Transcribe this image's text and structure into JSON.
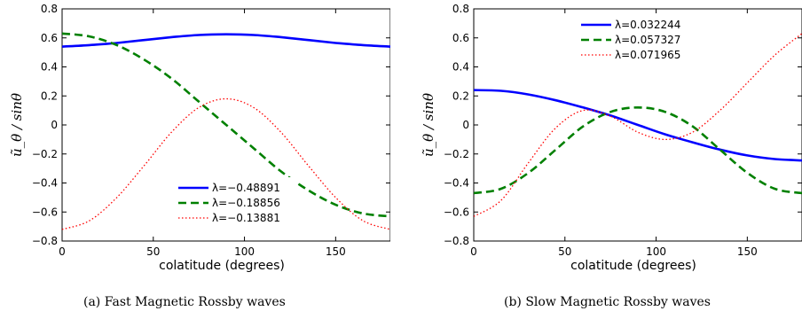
{
  "chart_data": [
    {
      "type": "line",
      "caption": "(a)  Fast Magnetic Rossby waves",
      "xlabel": "colatitude (degrees)",
      "ylabel": "ũ_θ / sinθ",
      "xlim": [
        0,
        180
      ],
      "ylim": [
        -0.8,
        0.8
      ],
      "xticks": [
        "0",
        "50",
        "100",
        "150"
      ],
      "yticks": [
        "−0.8",
        "−0.6",
        "−0.4",
        "−0.2",
        "0",
        "0.2",
        "0.4",
        "0.6",
        "0.8"
      ],
      "legend_position": "bottom-right",
      "series": [
        {
          "name": "λ=−0.48891",
          "color": "#0000ff",
          "style": "solid",
          "x": [
            0,
            15,
            30,
            45,
            60,
            75,
            90,
            105,
            120,
            135,
            150,
            165,
            180
          ],
          "y": [
            0.54,
            0.55,
            0.565,
            0.585,
            0.605,
            0.62,
            0.625,
            0.62,
            0.605,
            0.585,
            0.565,
            0.55,
            0.54
          ]
        },
        {
          "name": "λ=−0.18856",
          "color": "#008000",
          "style": "dashed",
          "x": [
            0,
            15,
            30,
            45,
            60,
            75,
            90,
            105,
            120,
            135,
            150,
            165,
            180
          ],
          "y": [
            0.63,
            0.61,
            0.55,
            0.45,
            0.32,
            0.16,
            0.0,
            -0.16,
            -0.32,
            -0.45,
            -0.55,
            -0.61,
            -0.63
          ]
        },
        {
          "name": "λ=−0.13881",
          "color": "#ff0000",
          "style": "dotted",
          "x": [
            0,
            15,
            30,
            45,
            60,
            75,
            90,
            105,
            120,
            135,
            150,
            165,
            180
          ],
          "y": [
            -0.72,
            -0.66,
            -0.5,
            -0.28,
            -0.05,
            0.12,
            0.18,
            0.12,
            -0.05,
            -0.28,
            -0.5,
            -0.66,
            -0.72
          ]
        }
      ]
    },
    {
      "type": "line",
      "caption": "(b)  Slow Magnetic Rossby waves",
      "xlabel": "colatitude (degrees)",
      "ylabel": "ũ_θ / sinθ",
      "xlim": [
        0,
        180
      ],
      "ylim": [
        -0.8,
        0.8
      ],
      "xticks": [
        "0",
        "50",
        "100",
        "150"
      ],
      "yticks": [
        "−0.8",
        "−0.6",
        "−0.4",
        "−0.2",
        "0",
        "0.2",
        "0.4",
        "0.6",
        "0.8"
      ],
      "legend_position": "top",
      "series": [
        {
          "name": "λ=0.032244",
          "color": "#0000ff",
          "style": "solid",
          "x": [
            0,
            15,
            30,
            45,
            60,
            75,
            90,
            105,
            120,
            135,
            150,
            165,
            180
          ],
          "y": [
            0.24,
            0.235,
            0.21,
            0.17,
            0.12,
            0.065,
            0.0,
            -0.065,
            -0.12,
            -0.17,
            -0.21,
            -0.235,
            -0.245
          ]
        },
        {
          "name": "λ=0.057327",
          "color": "#008000",
          "style": "dashed",
          "x": [
            0,
            15,
            30,
            45,
            60,
            75,
            90,
            105,
            120,
            135,
            150,
            165,
            180
          ],
          "y": [
            -0.47,
            -0.44,
            -0.33,
            -0.17,
            -0.01,
            0.09,
            0.12,
            0.09,
            -0.01,
            -0.17,
            -0.33,
            -0.44,
            -0.47
          ]
        },
        {
          "name": "λ=0.071965",
          "color": "#ff0000",
          "style": "dotted",
          "x": [
            0,
            15,
            30,
            45,
            60,
            75,
            90,
            105,
            120,
            135,
            150,
            165,
            180
          ],
          "y": [
            -0.63,
            -0.52,
            -0.26,
            -0.02,
            0.1,
            0.06,
            -0.05,
            -0.1,
            -0.05,
            0.1,
            0.29,
            0.48,
            0.63
          ]
        }
      ]
    }
  ]
}
